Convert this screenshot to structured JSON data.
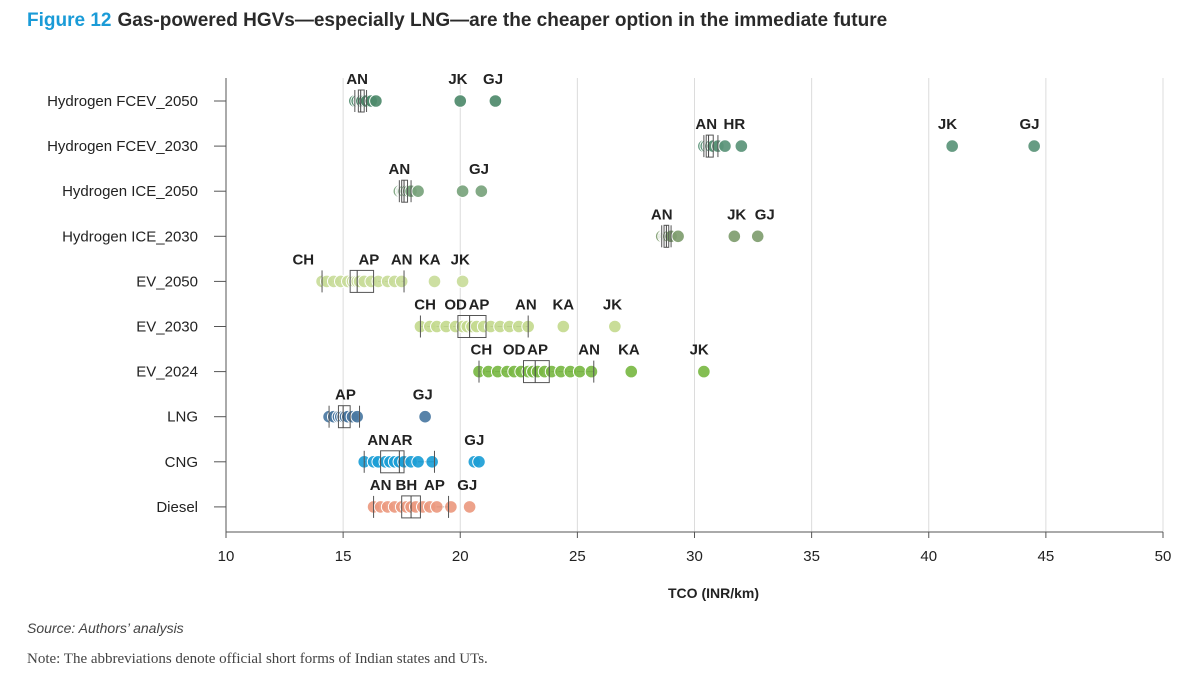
{
  "figure": {
    "number": "Figure 12",
    "title": "Gas-powered HGVs—especially LNG—are the cheaper option in the immediate future"
  },
  "source": "Source: Authors’ analysis",
  "note": "Note: The abbreviations denote official short forms of Indian states and UTs.",
  "chart_data": {
    "type": "scatter",
    "subtype": "box-dot-plot (horizontal)",
    "xlabel": "TCO (INR/km)",
    "ylabel": "",
    "xlim": [
      10,
      50
    ],
    "xticks": [
      10,
      15,
      20,
      25,
      30,
      35,
      40,
      45,
      50
    ],
    "grid": "vertical gridlines",
    "categories": [
      "Hydrogen FCEV_2050",
      "Hydrogen FCEV_2030",
      "Hydrogen ICE_2050",
      "Hydrogen ICE_2030",
      "EV_2050",
      "EV_2030",
      "EV_2024",
      "LNG",
      "CNG",
      "Diesel"
    ],
    "series": [
      {
        "category": "Hydrogen FCEV_2050",
        "color": "#4e8a6b",
        "values": [
          15.5,
          15.6,
          15.7,
          15.75,
          15.8,
          15.9,
          16.0,
          16.2,
          16.4,
          20.0,
          21.5
        ],
        "box": {
          "whisker_low": 15.5,
          "q1": 15.65,
          "median": 15.75,
          "q3": 15.9,
          "whisker_high": 16.0
        },
        "labels": [
          {
            "text": "AN",
            "x": 15.6
          },
          {
            "text": "JK",
            "x": 19.9
          },
          {
            "text": "GJ",
            "x": 21.4
          }
        ]
      },
      {
        "category": "Hydrogen FCEV_2030",
        "color": "#5a9478",
        "values": [
          30.4,
          30.5,
          30.6,
          30.65,
          30.7,
          30.8,
          31.0,
          31.3,
          32.0,
          41.0,
          44.5
        ],
        "box": {
          "whisker_low": 30.4,
          "q1": 30.5,
          "median": 30.6,
          "q3": 30.8,
          "whisker_high": 31.0
        },
        "labels": [
          {
            "text": "AN",
            "x": 30.5
          },
          {
            "text": "HR",
            "x": 31.7
          },
          {
            "text": "JK",
            "x": 40.8
          },
          {
            "text": "GJ",
            "x": 44.3
          }
        ]
      },
      {
        "category": "Hydrogen ICE_2050",
        "color": "#78a37c",
        "values": [
          17.4,
          17.5,
          17.55,
          17.6,
          17.7,
          17.8,
          17.9,
          18.2,
          20.1,
          20.9
        ],
        "box": {
          "whisker_low": 17.4,
          "q1": 17.5,
          "median": 17.6,
          "q3": 17.75,
          "whisker_high": 17.9
        },
        "labels": [
          {
            "text": "AN",
            "x": 17.4
          },
          {
            "text": "GJ",
            "x": 20.8
          }
        ]
      },
      {
        "category": "Hydrogen ICE_2030",
        "color": "#7f9d6f",
        "values": [
          28.6,
          28.7,
          28.75,
          28.8,
          28.85,
          28.9,
          29.0,
          29.3,
          31.7,
          32.7
        ],
        "box": {
          "whisker_low": 28.6,
          "q1": 28.7,
          "median": 28.8,
          "q3": 28.9,
          "whisker_high": 29.0
        },
        "labels": [
          {
            "text": "AN",
            "x": 28.6
          },
          {
            "text": "JK",
            "x": 31.8
          },
          {
            "text": "GJ",
            "x": 33.0
          }
        ]
      },
      {
        "category": "EV_2050",
        "color": "#c9dc9a",
        "values": [
          14.1,
          14.3,
          14.6,
          14.9,
          15.2,
          15.4,
          15.5,
          15.6,
          15.7,
          15.9,
          16.2,
          16.5,
          16.9,
          17.2,
          17.5,
          18.9,
          20.1
        ],
        "box": {
          "whisker_low": 14.1,
          "q1": 15.3,
          "median": 15.6,
          "q3": 16.3,
          "whisker_high": 17.6
        },
        "labels": [
          {
            "text": "CH",
            "x": 13.3
          },
          {
            "text": "AP",
            "x": 16.1
          },
          {
            "text": "AN",
            "x": 17.5
          },
          {
            "text": "KA",
            "x": 18.7
          },
          {
            "text": "JK",
            "x": 20.0
          }
        ]
      },
      {
        "category": "EV_2030",
        "color": "#c4da8f",
        "values": [
          18.3,
          18.7,
          19.0,
          19.4,
          19.8,
          20.1,
          20.3,
          20.5,
          20.7,
          21.0,
          21.3,
          21.7,
          22.1,
          22.5,
          22.9,
          24.4,
          26.6
        ],
        "box": {
          "whisker_low": 18.3,
          "q1": 19.9,
          "median": 20.4,
          "q3": 21.1,
          "whisker_high": 22.9
        },
        "labels": [
          {
            "text": "CH",
            "x": 18.5
          },
          {
            "text": "OD",
            "x": 19.8
          },
          {
            "text": "AP",
            "x": 20.8
          },
          {
            "text": "AN",
            "x": 22.8
          },
          {
            "text": "KA",
            "x": 24.4
          },
          {
            "text": "JK",
            "x": 26.5
          }
        ]
      },
      {
        "category": "EV_2024",
        "color": "#7ab844",
        "values": [
          20.8,
          21.2,
          21.6,
          22.0,
          22.3,
          22.6,
          22.9,
          23.1,
          23.3,
          23.6,
          23.9,
          24.3,
          24.7,
          25.1,
          25.6,
          27.3,
          30.4
        ],
        "box": {
          "whisker_low": 20.8,
          "q1": 22.7,
          "median": 23.2,
          "q3": 23.8,
          "whisker_high": 25.7
        },
        "labels": [
          {
            "text": "CH",
            "x": 20.9
          },
          {
            "text": "OD",
            "x": 22.3
          },
          {
            "text": "AP",
            "x": 23.3
          },
          {
            "text": "AN",
            "x": 25.5
          },
          {
            "text": "KA",
            "x": 27.2
          },
          {
            "text": "JK",
            "x": 30.2
          }
        ]
      },
      {
        "category": "LNG",
        "color": "#4a78a2",
        "values": [
          14.4,
          14.6,
          14.8,
          14.9,
          15.0,
          15.1,
          15.2,
          15.4,
          15.6,
          18.5
        ],
        "box": {
          "whisker_low": 14.4,
          "q1": 14.8,
          "median": 15.0,
          "q3": 15.3,
          "whisker_high": 15.7
        },
        "labels": [
          {
            "text": "AP",
            "x": 15.1
          },
          {
            "text": "GJ",
            "x": 18.4
          }
        ]
      },
      {
        "category": "CNG",
        "color": "#1c9ed6",
        "values": [
          15.9,
          16.3,
          16.5,
          16.8,
          17.0,
          17.2,
          17.4,
          17.6,
          17.9,
          18.2,
          18.8,
          20.6,
          20.8
        ],
        "box": {
          "whisker_low": 15.9,
          "q1": 16.6,
          "median": 17.4,
          "q3": 17.6,
          "whisker_high": 18.9
        },
        "labels": [
          {
            "text": "AN",
            "x": 16.5
          },
          {
            "text": "AR",
            "x": 17.5
          },
          {
            "text": "GJ",
            "x": 20.6
          }
        ]
      },
      {
        "category": "Diesel",
        "color": "#ec9a80",
        "values": [
          16.3,
          16.6,
          16.9,
          17.2,
          17.5,
          17.7,
          17.9,
          18.1,
          18.4,
          18.7,
          19.0,
          19.6,
          20.4
        ],
        "box": {
          "whisker_low": 16.3,
          "q1": 17.5,
          "median": 17.9,
          "q3": 18.3,
          "whisker_high": 19.5
        },
        "labels": [
          {
            "text": "AN",
            "x": 16.6
          },
          {
            "text": "BH",
            "x": 17.7
          },
          {
            "text": "AP",
            "x": 18.9
          },
          {
            "text": "GJ",
            "x": 20.3
          }
        ]
      }
    ]
  }
}
